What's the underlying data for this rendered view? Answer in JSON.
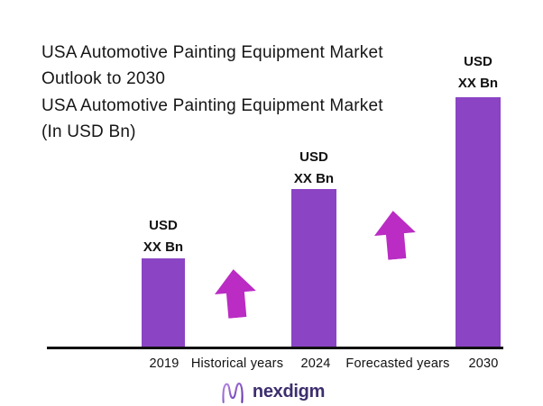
{
  "title": {
    "line1": "USA Automotive Painting Equipment Market",
    "line2": "Outlook to 2030"
  },
  "subtitle": {
    "line1": "USA Automotive Painting Equipment Market",
    "line2": "(In USD Bn)"
  },
  "chart_data": {
    "type": "bar",
    "categories": [
      "2019",
      "2024",
      "2030"
    ],
    "values": [
      1.0,
      1.77,
      2.79
    ],
    "values_note": "relative bar heights (2019 = 1); actual market values masked as 'XX Bn' in the chart",
    "bar_value_label": {
      "line1": "USD",
      "line2": "XX Bn"
    },
    "x_axis_labels": [
      "2019",
      "Historical years",
      "2024",
      "Forecasted years",
      "2030"
    ],
    "annotations": [
      "growth arrow between 2019 and 2024",
      "growth arrow between 2024 and 2030"
    ],
    "bar_color": "#8b44c4",
    "arrow_color": "#ba2cc4",
    "axis_color": "#111111",
    "grid": false,
    "legend": "none"
  },
  "footer": {
    "logo_text": "nexdigm",
    "logo_color": "#3d2e6e",
    "logo_icon_gradient": [
      "#b58ae6",
      "#5f2da8"
    ]
  }
}
